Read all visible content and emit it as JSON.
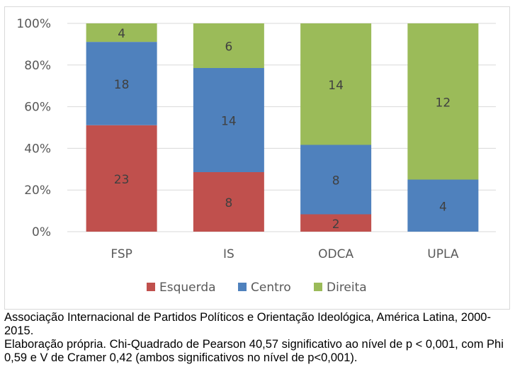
{
  "chart_data": {
    "type": "bar",
    "stacked": true,
    "percent_stacked": true,
    "title": "",
    "xlabel": "",
    "ylabel": "",
    "ylim": [
      0,
      100
    ],
    "y_ticks": [
      "0%",
      "20%",
      "40%",
      "60%",
      "80%",
      "100%"
    ],
    "grid": true,
    "legend_position": "bottom",
    "categories": [
      "FSP",
      "IS",
      "ODCA",
      "UPLA"
    ],
    "series": [
      {
        "name": "Esquerda",
        "color": "#c0504d",
        "values": [
          23,
          8,
          2,
          0
        ]
      },
      {
        "name": "Centro",
        "color": "#4f81bd",
        "values": [
          18,
          14,
          8,
          4
        ]
      },
      {
        "name": "Direita",
        "color": "#9bbb59",
        "values": [
          4,
          6,
          14,
          12
        ]
      }
    ]
  },
  "caption": {
    "line1": "Associação Internacional de Partidos Políticos e Orientação Ideológica, América Latina, 2000-2015.",
    "line2": "Elaboração própria. Chi-Quadrado de Pearson 40,57 significativo ao nível de p < 0,001, com Phi 0,59 e V de Cramer 0,42 (ambos significativos no nível de p<0,001)."
  }
}
